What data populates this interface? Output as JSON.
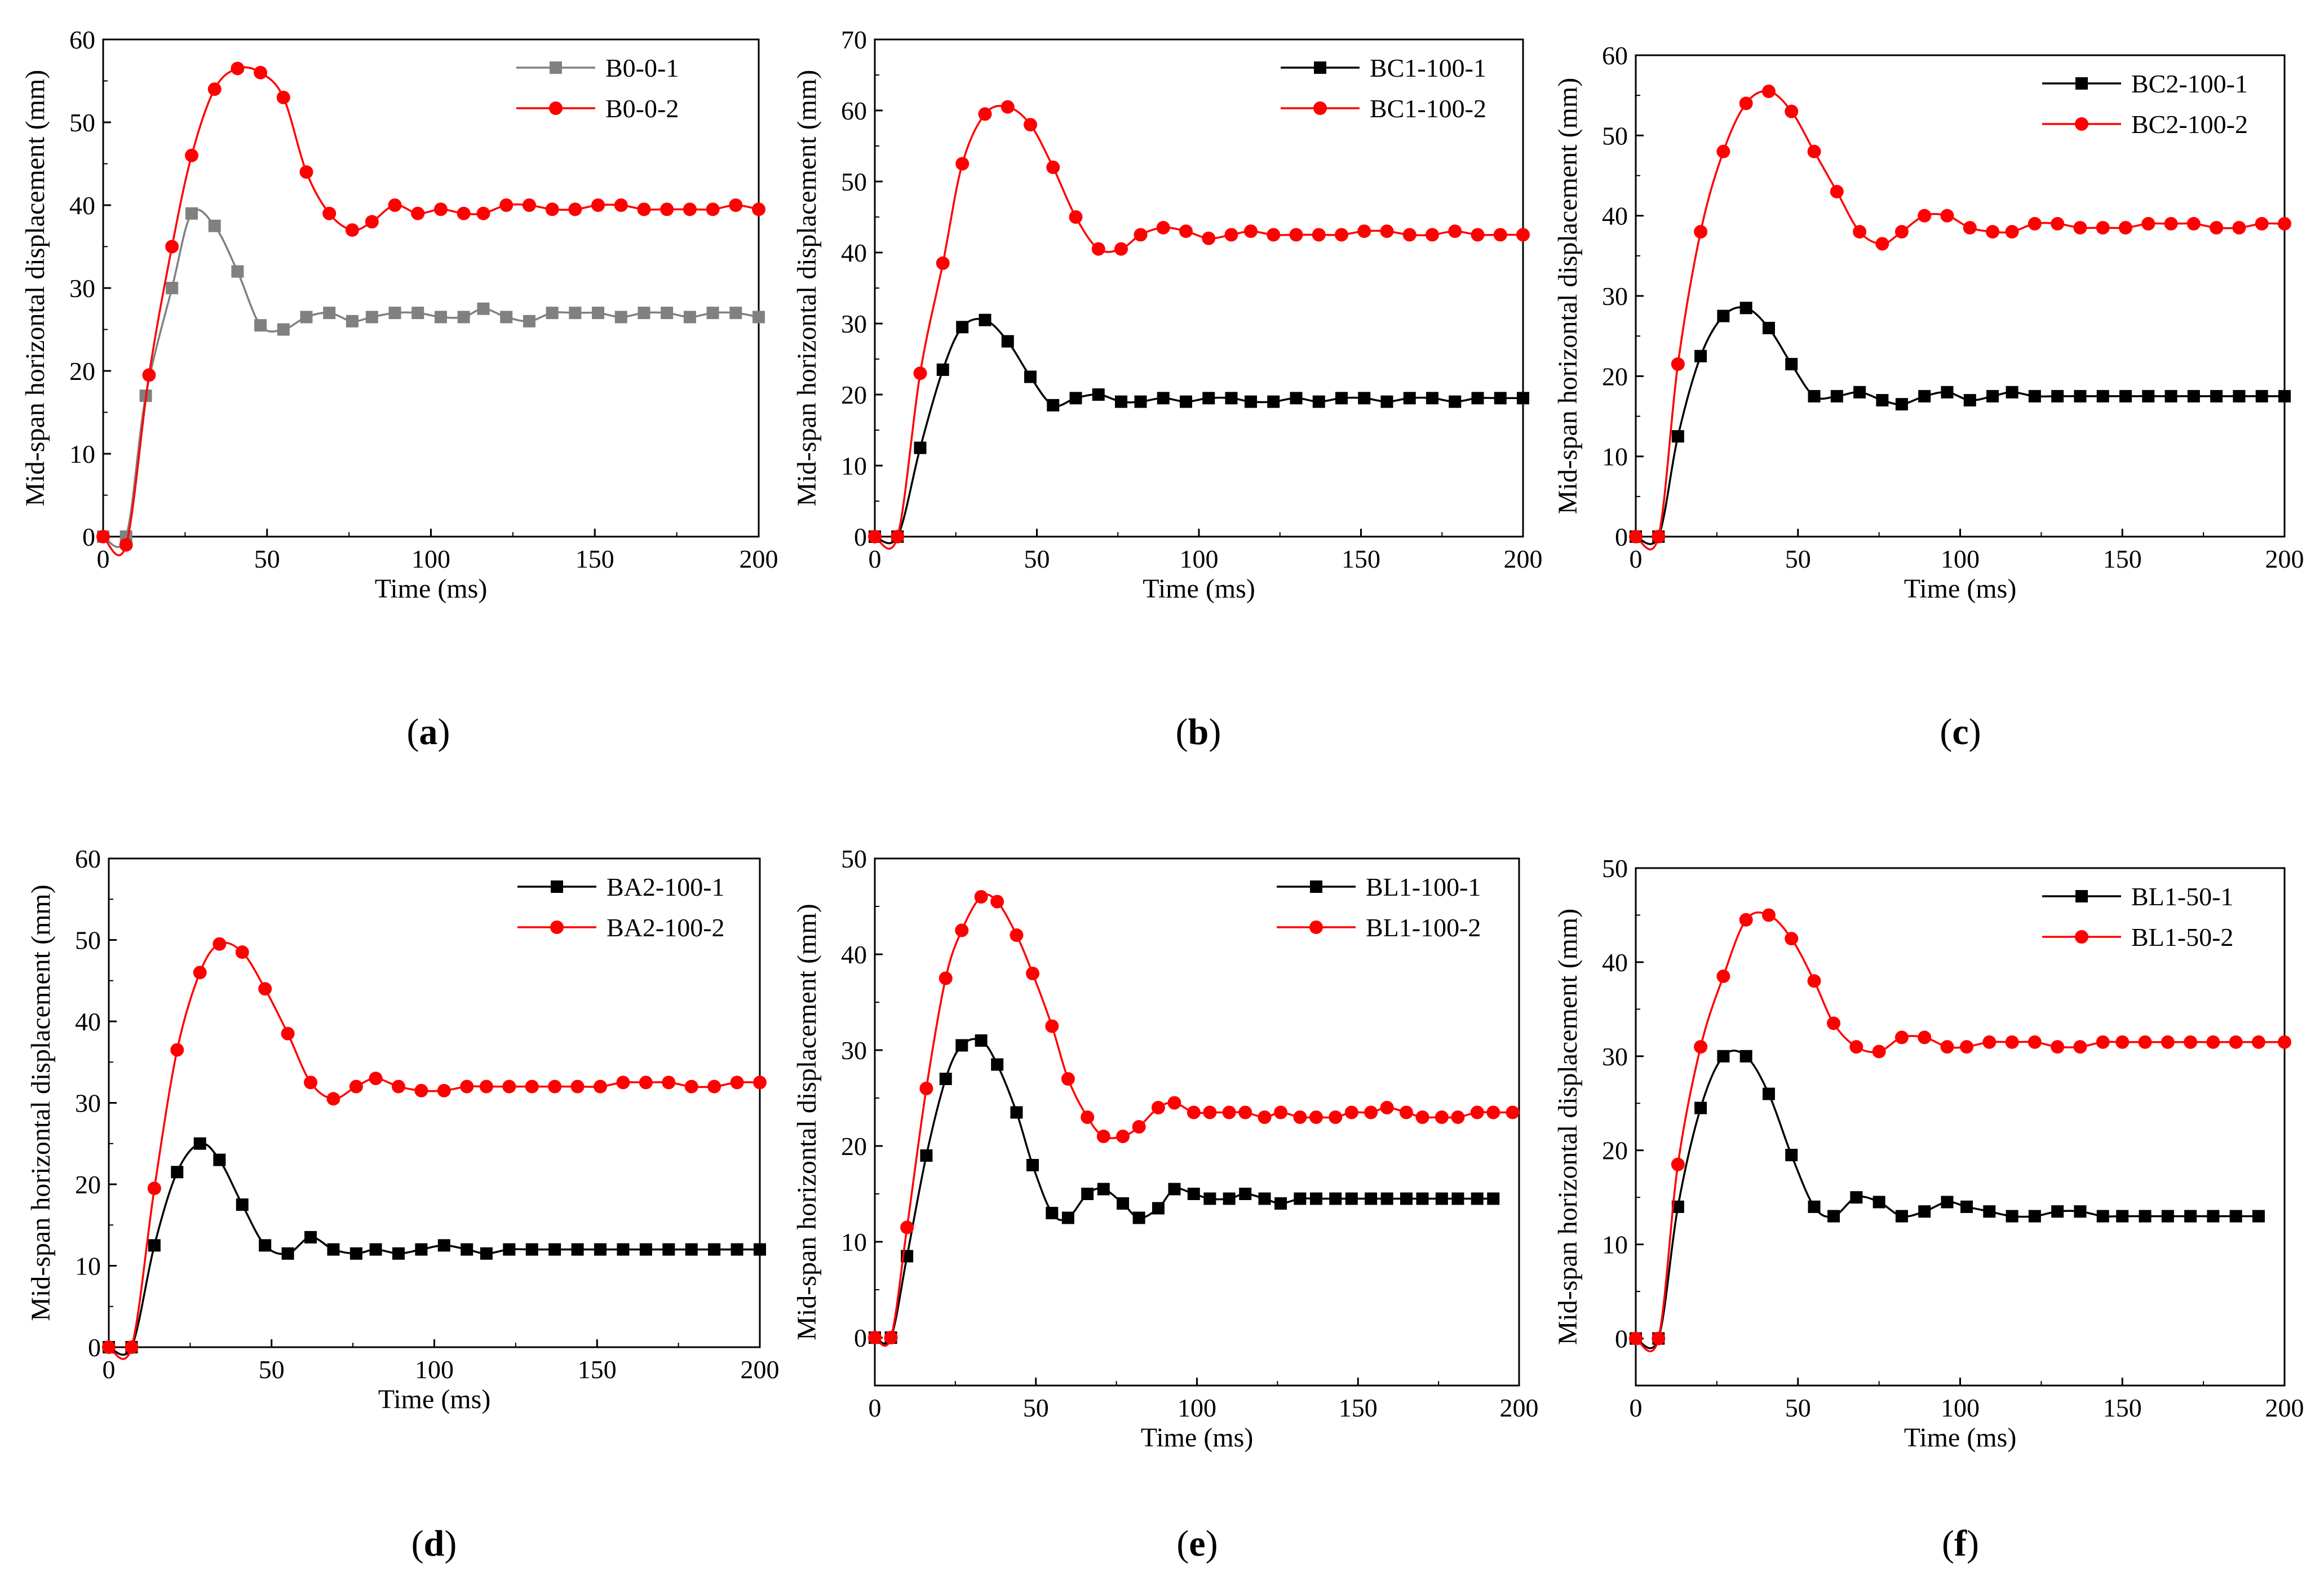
{
  "chart_data": [
    {
      "panel": "(a)",
      "caption_letter": "a",
      "type": "line",
      "xlabel": "Time (ms)",
      "ylabel": "Mid-span horizontal displacement (mm)",
      "xlim": [
        0,
        200
      ],
      "ylim": [
        0,
        60
      ],
      "xticks": [
        0,
        50,
        100,
        150,
        200
      ],
      "yticks": [
        0,
        10,
        20,
        30,
        40,
        50,
        60
      ],
      "legend_position": "top-right",
      "series": [
        {
          "name": "B0-0-1",
          "color": "#808080",
          "marker": "square",
          "x": [
            0,
            7,
            13,
            21,
            27,
            34,
            41,
            48,
            55,
            62,
            69,
            76,
            82,
            89,
            96,
            103,
            110,
            116,
            123,
            130,
            137,
            144,
            151,
            158,
            165,
            172,
            179,
            186,
            193,
            200
          ],
          "y": [
            0,
            0,
            17,
            30,
            39,
            37.5,
            32,
            25.5,
            25,
            26.5,
            27,
            26,
            26.5,
            27,
            27,
            26.5,
            26.5,
            27.5,
            26.5,
            26,
            27,
            27,
            27,
            26.5,
            27,
            27,
            26.5,
            27,
            27,
            26.5
          ]
        },
        {
          "name": "B0-0-2",
          "color": "#ff0000",
          "marker": "circle",
          "x": [
            0,
            7,
            14,
            21,
            27,
            34,
            41,
            48,
            55,
            62,
            69,
            76,
            82,
            89,
            96,
            103,
            110,
            116,
            123,
            130,
            137,
            144,
            151,
            158,
            165,
            172,
            179,
            186,
            193,
            200
          ],
          "y": [
            0,
            -1,
            19.5,
            35,
            46,
            54,
            56.5,
            56,
            53,
            44,
            39,
            37,
            38,
            40,
            39,
            39.5,
            39,
            39,
            40,
            40,
            39.5,
            39.5,
            40,
            40,
            39.5,
            39.5,
            39.5,
            39.5,
            40,
            39.5
          ]
        }
      ]
    },
    {
      "panel": "(b)",
      "caption_letter": "b",
      "type": "line",
      "xlabel": "Time (ms)",
      "ylabel": "Mid-span horizontal displacement (mm)",
      "xlim": [
        0,
        200
      ],
      "ylim": [
        0,
        70
      ],
      "xticks": [
        0,
        50,
        100,
        150,
        200
      ],
      "yticks": [
        0,
        10,
        20,
        30,
        40,
        50,
        60,
        70
      ],
      "legend_position": "top-right",
      "series": [
        {
          "name": "BC1-100-1",
          "color": "#000000",
          "marker": "square",
          "x": [
            0,
            7,
            14,
            21,
            27,
            34,
            41,
            48,
            55,
            62,
            69,
            76,
            82,
            89,
            96,
            103,
            110,
            116,
            123,
            130,
            137,
            144,
            151,
            158,
            165,
            172,
            179,
            186,
            193,
            200
          ],
          "y": [
            0,
            0,
            12.5,
            23.5,
            29.5,
            30.5,
            27.5,
            22.5,
            18.5,
            19.5,
            20,
            19,
            19,
            19.5,
            19,
            19.5,
            19.5,
            19,
            19,
            19.5,
            19,
            19.5,
            19.5,
            19,
            19.5,
            19.5,
            19,
            19.5,
            19.5,
            19.5
          ]
        },
        {
          "name": "BC1-100-2",
          "color": "#ff0000",
          "marker": "circle",
          "x": [
            0,
            7,
            14,
            21,
            27,
            34,
            41,
            48,
            55,
            62,
            69,
            76,
            82,
            89,
            96,
            103,
            110,
            116,
            123,
            130,
            137,
            144,
            151,
            158,
            165,
            172,
            179,
            186,
            193,
            200
          ],
          "y": [
            0,
            0,
            23,
            38.5,
            52.5,
            59.5,
            60.5,
            58,
            52,
            45,
            40.5,
            40.5,
            42.5,
            43.5,
            43,
            42,
            42.5,
            43,
            42.5,
            42.5,
            42.5,
            42.5,
            43,
            43,
            42.5,
            42.5,
            43,
            42.5,
            42.5,
            42.5
          ]
        }
      ]
    },
    {
      "panel": "(c)",
      "caption_letter": "c",
      "type": "line",
      "xlabel": "Time (ms)",
      "ylabel": "Mid-span horizontal displacement (mm)",
      "xlim": [
        0,
        200
      ],
      "ylim": [
        0,
        60
      ],
      "xticks": [
        0,
        50,
        100,
        150,
        200
      ],
      "yticks": [
        0,
        10,
        20,
        30,
        40,
        50,
        60
      ],
      "legend_position": "top-right",
      "series": [
        {
          "name": "BC2-100-1",
          "color": "#000000",
          "marker": "square",
          "x": [
            0,
            7,
            13,
            20,
            27,
            34,
            41,
            48,
            55,
            62,
            69,
            76,
            82,
            89,
            96,
            103,
            110,
            116,
            123,
            130,
            137,
            144,
            151,
            158,
            165,
            172,
            179,
            186,
            193,
            200
          ],
          "y": [
            0,
            0,
            12.5,
            22.5,
            27.5,
            28.5,
            26,
            21.5,
            17.5,
            17.5,
            18,
            17,
            16.5,
            17.5,
            18,
            17,
            17.5,
            18,
            17.5,
            17.5,
            17.5,
            17.5,
            17.5,
            17.5,
            17.5,
            17.5,
            17.5,
            17.5,
            17.5,
            17.5
          ]
        },
        {
          "name": "BC2-100-2",
          "color": "#ff0000",
          "marker": "circle",
          "x": [
            0,
            7,
            13,
            20,
            27,
            34,
            41,
            48,
            55,
            62,
            69,
            76,
            82,
            89,
            96,
            103,
            110,
            116,
            123,
            130,
            137,
            144,
            151,
            158,
            165,
            172,
            179,
            186,
            193,
            200
          ],
          "y": [
            0,
            0,
            21.5,
            38,
            48,
            54,
            55.5,
            53,
            48,
            43,
            38,
            36.5,
            38,
            40,
            40,
            38.5,
            38,
            38,
            39,
            39,
            38.5,
            38.5,
            38.5,
            39,
            39,
            39,
            38.5,
            38.5,
            39,
            39
          ]
        }
      ]
    },
    {
      "panel": "(d)",
      "caption_letter": "d",
      "type": "line",
      "xlabel": "Time (ms)",
      "ylabel": "Mid-span horizontal displacement (mm)",
      "xlim": [
        0,
        200
      ],
      "ylim": [
        0,
        60
      ],
      "xticks": [
        0,
        50,
        100,
        150,
        200
      ],
      "yticks": [
        0,
        10,
        20,
        30,
        40,
        50,
        60
      ],
      "legend_position": "top-right",
      "series": [
        {
          "name": "BA2-100-1",
          "color": "#000000",
          "marker": "square",
          "x": [
            0,
            7,
            14,
            21,
            28,
            34,
            41,
            48,
            55,
            62,
            69,
            76,
            82,
            89,
            96,
            103,
            110,
            116,
            123,
            130,
            137,
            144,
            151,
            158,
            165,
            172,
            179,
            186,
            193,
            200
          ],
          "y": [
            0,
            0,
            12.5,
            21.5,
            25,
            23,
            17.5,
            12.5,
            11.5,
            13.5,
            12,
            11.5,
            12,
            11.5,
            12,
            12.5,
            12,
            11.5,
            12,
            12,
            12,
            12,
            12,
            12,
            12,
            12,
            12,
            12,
            12,
            12
          ]
        },
        {
          "name": "BA2-100-2",
          "color": "#ff0000",
          "marker": "circle",
          "x": [
            0,
            7,
            14,
            21,
            28,
            34,
            41,
            48,
            55,
            62,
            69,
            76,
            82,
            89,
            96,
            103,
            110,
            116,
            123,
            130,
            137,
            144,
            151,
            158,
            165,
            172,
            179,
            186,
            193,
            200
          ],
          "y": [
            0,
            0,
            19.5,
            36.5,
            46,
            49.5,
            48.5,
            44,
            38.5,
            32.5,
            30.5,
            32,
            33,
            32,
            31.5,
            31.5,
            32,
            32,
            32,
            32,
            32,
            32,
            32,
            32.5,
            32.5,
            32.5,
            32,
            32,
            32.5,
            32.5
          ]
        }
      ]
    },
    {
      "panel": "(e)",
      "caption_letter": "e",
      "type": "line",
      "xlabel": "Time (ms)",
      "ylabel": "Mid-span horizontal displacement (mm)",
      "xlim": [
        0,
        200
      ],
      "ylim": [
        -5,
        50
      ],
      "xticks": [
        0,
        50,
        100,
        150,
        200
      ],
      "yticks": [
        0,
        10,
        20,
        30,
        40,
        50
      ],
      "legend_position": "top-right",
      "series": [
        {
          "name": "BL1-100-1",
          "color": "#000000",
          "marker": "square",
          "x": [
            0,
            5,
            10,
            16,
            22,
            27,
            33,
            38,
            44,
            49,
            55,
            60,
            66,
            71,
            77,
            82,
            88,
            93,
            99,
            104,
            110,
            115,
            121,
            126,
            132,
            137,
            143,
            148,
            154,
            159,
            165,
            170,
            176,
            181,
            187,
            192
          ],
          "y": [
            0,
            0,
            8.5,
            19,
            27,
            30.5,
            31,
            28.5,
            23.5,
            18,
            13,
            12.5,
            15,
            15.5,
            14,
            12.5,
            13.5,
            15.5,
            15,
            14.5,
            14.5,
            15,
            14.5,
            14,
            14.5,
            14.5,
            14.5,
            14.5,
            14.5,
            14.5,
            14.5,
            14.5,
            14.5,
            14.5,
            14.5,
            14.5
          ]
        },
        {
          "name": "BL1-100-2",
          "color": "#ff0000",
          "marker": "circle",
          "x": [
            0,
            5,
            10,
            16,
            22,
            27,
            33,
            38,
            44,
            49,
            55,
            60,
            66,
            71,
            77,
            82,
            88,
            93,
            99,
            104,
            110,
            115,
            121,
            126,
            132,
            137,
            143,
            148,
            154,
            159,
            165,
            170,
            176,
            181,
            187,
            192,
            198
          ],
          "y": [
            0,
            0,
            11.5,
            26,
            37.5,
            42.5,
            46,
            45.5,
            42,
            38,
            32.5,
            27,
            23,
            21,
            21,
            22,
            24,
            24.5,
            23.5,
            23.5,
            23.5,
            23.5,
            23,
            23.5,
            23,
            23,
            23,
            23.5,
            23.5,
            24,
            23.5,
            23,
            23,
            23,
            23.5,
            23.5,
            23.5
          ]
        }
      ]
    },
    {
      "panel": "(f)",
      "caption_letter": "f",
      "type": "line",
      "xlabel": "Time (ms)",
      "ylabel": "Mid-span horizontal displacement (mm)",
      "xlim": [
        0,
        200
      ],
      "ylim": [
        -5,
        50
      ],
      "xticks": [
        0,
        50,
        100,
        150,
        200
      ],
      "yticks": [
        0,
        10,
        20,
        30,
        40,
        50
      ],
      "legend_position": "top-right",
      "series": [
        {
          "name": "BL1-50-1",
          "color": "#000000",
          "marker": "square",
          "x": [
            0,
            7,
            13,
            20,
            27,
            34,
            41,
            48,
            55,
            61,
            68,
            75,
            82,
            89,
            96,
            102,
            109,
            116,
            123,
            130,
            137,
            144,
            150,
            157,
            164,
            171,
            178,
            185,
            192
          ],
          "y": [
            0,
            0,
            14,
            24.5,
            30,
            30,
            26,
            19.5,
            14,
            13,
            15,
            14.5,
            13,
            13.5,
            14.5,
            14,
            13.5,
            13,
            13,
            13.5,
            13.5,
            13,
            13,
            13,
            13,
            13,
            13,
            13,
            13
          ]
        },
        {
          "name": "BL1-50-2",
          "color": "#ff0000",
          "marker": "circle",
          "x": [
            0,
            7,
            13,
            20,
            27,
            34,
            41,
            48,
            55,
            61,
            68,
            75,
            82,
            89,
            96,
            102,
            109,
            116,
            123,
            130,
            137,
            144,
            150,
            157,
            164,
            171,
            178,
            185,
            192,
            200
          ],
          "y": [
            0,
            0,
            18.5,
            31,
            38.5,
            44.5,
            45,
            42.5,
            38,
            33.5,
            31,
            30.5,
            32,
            32,
            31,
            31,
            31.5,
            31.5,
            31.5,
            31,
            31,
            31.5,
            31.5,
            31.5,
            31.5,
            31.5,
            31.5,
            31.5,
            31.5,
            31.5
          ]
        }
      ]
    }
  ]
}
